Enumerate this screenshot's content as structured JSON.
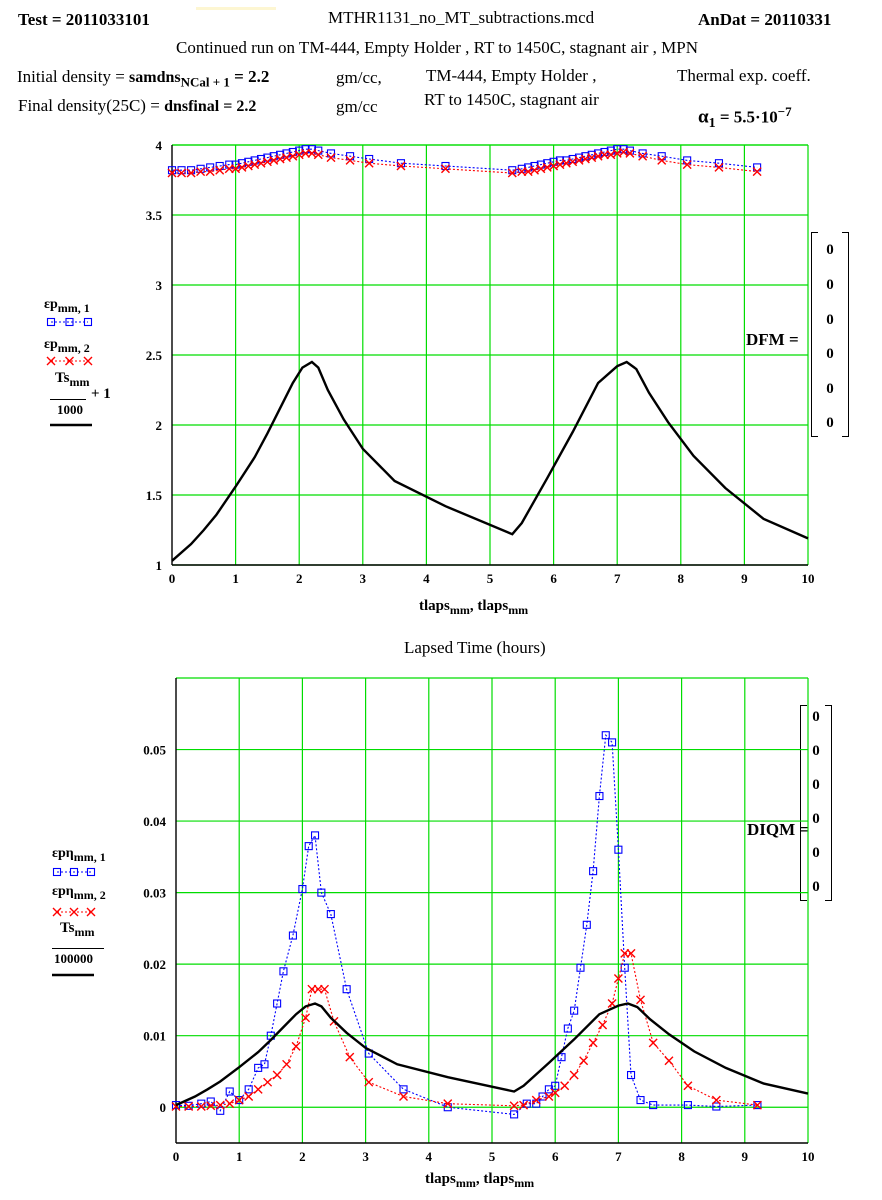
{
  "header": {
    "test_label": "Test = 2011033101",
    "file_name": "MTHR1131_no_MT_subtractions.mcd",
    "andat_label": "AnDat = 20110331",
    "continued": "Continued run on  TM-444, Empty Holder , RT to 1450C, stagnant air , MPN",
    "initial_density_label": "Initial density =",
    "initial_density_var": "samdns",
    "initial_density_sub": "NCal + 1",
    "initial_density_value": "= 2.2",
    "initial_density_unit": "gm/cc,",
    "final_density_label": "Final density(25C) =",
    "final_density_expr": "dnsfinal = 2.2",
    "final_density_unit": "gm/cc",
    "sample_line1": "TM-444, Empty Holder ,",
    "sample_line2": "RT to 1450C, stagnant air",
    "thermal_label": "Thermal exp. coeff.",
    "alpha_symbol": "α",
    "alpha_sub": "1",
    "alpha_value": "= 5.5·10",
    "alpha_exp": "−7"
  },
  "chart1": {
    "legend": {
      "s1_name": "εp",
      "s1_sub": "mm, 1",
      "s2_name": "εp",
      "s2_sub": "mm, 2",
      "s3_num": "Ts",
      "s3_num_sub": "mm",
      "s3_den": "1000",
      "s3_plus": "+ 1"
    },
    "x_label": "tlaps",
    "x_label_sub": "mm",
    "x_label_sep": ", tlaps",
    "x_label_sub2": "mm",
    "caption": "Lapsed Time (hours)",
    "matrix_label": "DFM =",
    "matrix_values": [
      "0",
      "0",
      "0",
      "0",
      "0",
      "0"
    ]
  },
  "chart2": {
    "legend": {
      "s1_name": "εpη",
      "s1_sub": "mm, 1",
      "s2_name": "εpη",
      "s2_sub": "mm, 2",
      "s3_num": "Ts",
      "s3_num_sub": "mm",
      "s3_den": "100000"
    },
    "x_label": "tlaps",
    "x_label_sub": "mm",
    "x_label_sep": ", tlaps",
    "x_label_sub2": "mm",
    "matrix_label": "DIQM =",
    "matrix_values": [
      "0",
      "0",
      "0",
      "0",
      "0",
      "0"
    ]
  },
  "colors": {
    "grid": "#00dd00",
    "series1": "#0000ff",
    "series2": "#ff0000",
    "series3": "#000000"
  },
  "chart_data": [
    {
      "type": "line",
      "xlim": [
        0,
        10
      ],
      "ylim": [
        1,
        4
      ],
      "x_ticks": [
        0,
        1,
        2,
        3,
        4,
        5,
        6,
        7,
        8,
        9,
        10
      ],
      "y_ticks": [
        1,
        1.5,
        2,
        2.5,
        3,
        3.5,
        4
      ],
      "grid": true,
      "series": [
        {
          "name": "εp mm,1",
          "x": [
            0,
            0.15,
            0.3,
            0.45,
            0.6,
            0.75,
            0.9,
            1.0,
            1.1,
            1.2,
            1.3,
            1.4,
            1.5,
            1.6,
            1.7,
            1.8,
            1.9,
            2.0,
            2.1,
            2.2,
            2.3,
            2.5,
            2.8,
            3.1,
            3.6,
            4.3,
            5.35,
            5.5,
            5.6,
            5.7,
            5.8,
            5.9,
            6.0,
            6.1,
            6.2,
            6.3,
            6.4,
            6.5,
            6.6,
            6.7,
            6.8,
            6.9,
            7.0,
            7.1,
            7.2,
            7.4,
            7.7,
            8.1,
            8.6,
            9.2
          ],
          "values": [
            3.82,
            3.82,
            3.82,
            3.83,
            3.84,
            3.85,
            3.86,
            3.86,
            3.87,
            3.88,
            3.89,
            3.9,
            3.91,
            3.92,
            3.93,
            3.94,
            3.95,
            3.96,
            3.97,
            3.97,
            3.96,
            3.94,
            3.92,
            3.9,
            3.87,
            3.85,
            3.82,
            3.83,
            3.84,
            3.85,
            3.86,
            3.87,
            3.88,
            3.89,
            3.89,
            3.9,
            3.91,
            3.92,
            3.93,
            3.94,
            3.95,
            3.96,
            3.97,
            3.97,
            3.96,
            3.94,
            3.92,
            3.89,
            3.87,
            3.84
          ]
        },
        {
          "name": "εp mm,2",
          "x": [
            0,
            0.15,
            0.3,
            0.45,
            0.6,
            0.75,
            0.9,
            1.0,
            1.1,
            1.2,
            1.3,
            1.4,
            1.5,
            1.6,
            1.7,
            1.8,
            1.9,
            2.0,
            2.1,
            2.2,
            2.3,
            2.5,
            2.8,
            3.1,
            3.6,
            4.3,
            5.35,
            5.5,
            5.6,
            5.7,
            5.8,
            5.9,
            6.0,
            6.1,
            6.2,
            6.3,
            6.4,
            6.5,
            6.6,
            6.7,
            6.8,
            6.9,
            7.0,
            7.1,
            7.2,
            7.4,
            7.7,
            8.1,
            8.6,
            9.2
          ],
          "values": [
            3.8,
            3.8,
            3.8,
            3.81,
            3.81,
            3.82,
            3.83,
            3.83,
            3.84,
            3.85,
            3.86,
            3.87,
            3.88,
            3.89,
            3.9,
            3.91,
            3.92,
            3.93,
            3.94,
            3.94,
            3.93,
            3.91,
            3.89,
            3.87,
            3.85,
            3.83,
            3.8,
            3.81,
            3.81,
            3.82,
            3.83,
            3.84,
            3.85,
            3.86,
            3.87,
            3.88,
            3.89,
            3.9,
            3.91,
            3.92,
            3.93,
            3.93,
            3.94,
            3.95,
            3.94,
            3.92,
            3.89,
            3.86,
            3.84,
            3.81
          ]
        },
        {
          "name": "Ts mm/1000 + 1",
          "x": [
            0,
            0.3,
            0.5,
            0.7,
            1.0,
            1.3,
            1.5,
            1.7,
            1.9,
            2.05,
            2.2,
            2.3,
            2.45,
            2.7,
            3.0,
            3.5,
            4.3,
            5.35,
            5.5,
            5.9,
            6.3,
            6.7,
            7.0,
            7.15,
            7.3,
            7.5,
            7.8,
            8.2,
            8.7,
            9.3,
            10
          ],
          "values": [
            1.03,
            1.15,
            1.25,
            1.36,
            1.56,
            1.77,
            1.94,
            2.12,
            2.3,
            2.41,
            2.45,
            2.41,
            2.25,
            2.04,
            1.83,
            1.6,
            1.42,
            1.22,
            1.3,
            1.62,
            1.95,
            2.3,
            2.42,
            2.45,
            2.4,
            2.23,
            2.02,
            1.78,
            1.55,
            1.33,
            1.19
          ]
        }
      ]
    },
    {
      "type": "line",
      "xlim": [
        0,
        10
      ],
      "ylim": [
        -0.005,
        0.06
      ],
      "x_ticks": [
        0,
        1,
        2,
        3,
        4,
        5,
        6,
        7,
        8,
        9,
        10
      ],
      "y_ticks": [
        0,
        0.01,
        0.02,
        0.03,
        0.04,
        0.05
      ],
      "grid": true,
      "series": [
        {
          "name": "εpη mm,1",
          "x": [
            0,
            0.2,
            0.4,
            0.55,
            0.7,
            0.85,
            1.0,
            1.15,
            1.3,
            1.4,
            1.5,
            1.6,
            1.7,
            1.85,
            2.0,
            2.1,
            2.2,
            2.3,
            2.45,
            2.7,
            3.05,
            3.6,
            4.3,
            5.35,
            5.55,
            5.7,
            5.8,
            5.9,
            6.0,
            6.1,
            6.2,
            6.3,
            6.4,
            6.5,
            6.6,
            6.7,
            6.8,
            6.9,
            7.0,
            7.1,
            7.2,
            7.35,
            7.55,
            8.1,
            8.55,
            9.2
          ],
          "values": [
            0.0003,
            0.0002,
            0.0005,
            0.0008,
            -0.0005,
            0.0022,
            0.001,
            0.0025,
            0.0055,
            0.006,
            0.01,
            0.0145,
            0.019,
            0.024,
            0.0305,
            0.0365,
            0.038,
            0.03,
            0.027,
            0.0165,
            0.0075,
            0.0025,
            0.0,
            -0.001,
            0.0005,
            0.0005,
            0.0015,
            0.0025,
            0.003,
            0.007,
            0.011,
            0.0135,
            0.0195,
            0.0255,
            0.033,
            0.0435,
            0.052,
            0.051,
            0.036,
            0.0195,
            0.0045,
            0.001,
            0.0003,
            0.0003,
            0.0001,
            0.0003
          ]
        },
        {
          "name": "εpη mm,2",
          "x": [
            0,
            0.2,
            0.4,
            0.55,
            0.7,
            0.85,
            1.0,
            1.15,
            1.3,
            1.45,
            1.6,
            1.75,
            1.9,
            2.05,
            2.15,
            2.25,
            2.35,
            2.5,
            2.75,
            3.05,
            3.6,
            4.3,
            5.35,
            5.5,
            5.7,
            5.9,
            6.0,
            6.15,
            6.3,
            6.45,
            6.6,
            6.75,
            6.9,
            7.0,
            7.1,
            7.2,
            7.35,
            7.55,
            7.8,
            8.1,
            8.55,
            9.2
          ],
          "values": [
            0.0001,
            0.0001,
            0.0001,
            0.0002,
            0.0003,
            0.0005,
            0.001,
            0.0015,
            0.0025,
            0.0035,
            0.0045,
            0.006,
            0.0085,
            0.0125,
            0.0165,
            0.0165,
            0.0165,
            0.012,
            0.007,
            0.0035,
            0.0015,
            0.0005,
            0.0002,
            0.0003,
            0.001,
            0.0015,
            0.002,
            0.003,
            0.0045,
            0.0065,
            0.009,
            0.0115,
            0.0145,
            0.018,
            0.0215,
            0.0215,
            0.015,
            0.009,
            0.0065,
            0.003,
            0.001,
            0.0003
          ]
        },
        {
          "name": "Ts mm/100000",
          "x": [
            0,
            0.3,
            0.5,
            0.7,
            1.0,
            1.3,
            1.5,
            1.7,
            1.9,
            2.05,
            2.2,
            2.3,
            2.45,
            2.7,
            3.0,
            3.5,
            4.3,
            5.35,
            5.5,
            5.9,
            6.3,
            6.7,
            7.0,
            7.15,
            7.3,
            7.5,
            7.8,
            8.2,
            8.7,
            9.3,
            10
          ],
          "values": [
            0.0003,
            0.0015,
            0.0025,
            0.0036,
            0.0056,
            0.0077,
            0.0094,
            0.0112,
            0.013,
            0.0141,
            0.0145,
            0.0141,
            0.0125,
            0.0104,
            0.0083,
            0.006,
            0.0042,
            0.0022,
            0.003,
            0.0062,
            0.0095,
            0.013,
            0.0142,
            0.0145,
            0.014,
            0.0123,
            0.0102,
            0.0078,
            0.0055,
            0.0033,
            0.0019
          ]
        }
      ]
    }
  ]
}
